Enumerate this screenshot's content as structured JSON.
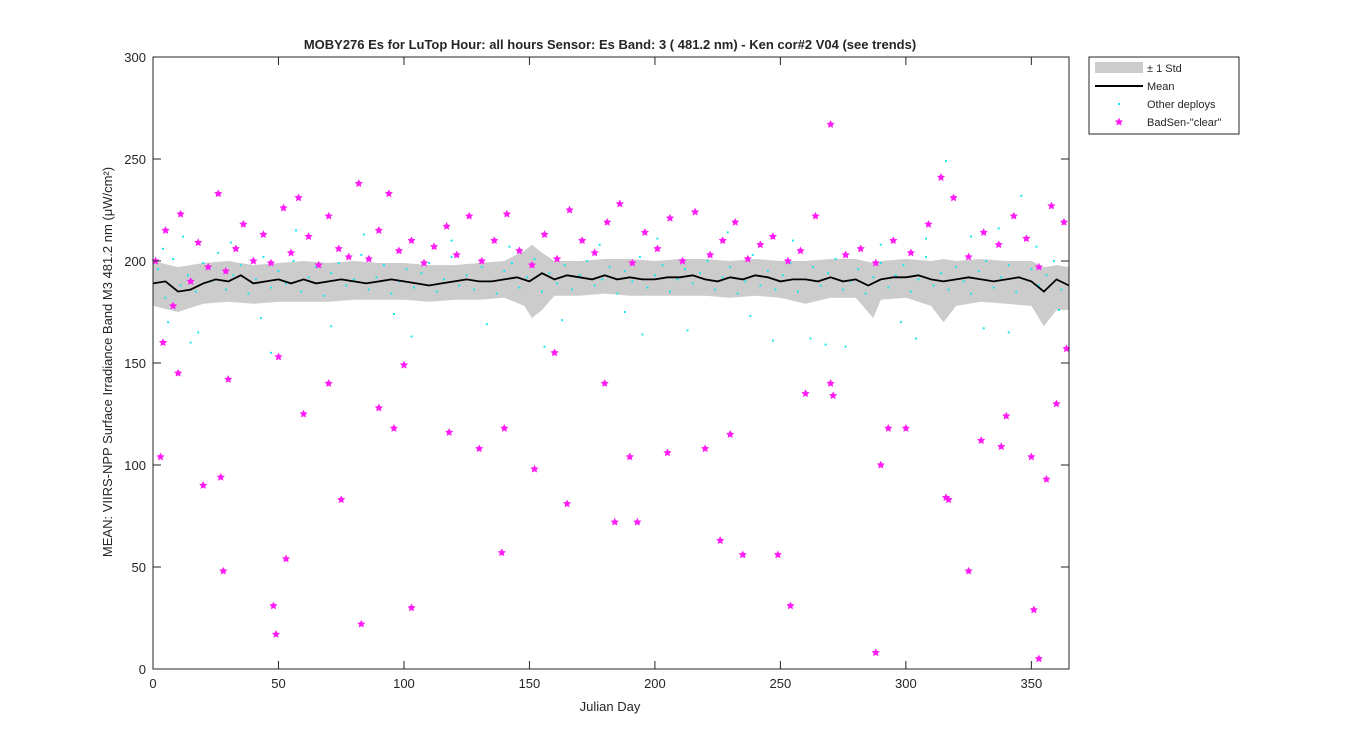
{
  "chart_data": {
    "type": "scatter",
    "title": "MOBY276   Es for LuTop  Hour: all hours  Sensor: Es Band: 3 ( 481.2 nm)   - Ken cor#2 V04 (see trends)",
    "xlabel": "Julian Day",
    "ylabel": "MEAN: VIIRS-NPP Surface Irradiance Band M3 481.2 nm (μW/cm²)",
    "xlim": [
      0,
      365
    ],
    "ylim": [
      0,
      300
    ],
    "x_ticks": [
      0,
      50,
      100,
      150,
      200,
      250,
      300,
      350
    ],
    "y_ticks": [
      0,
      50,
      100,
      150,
      200,
      250,
      300
    ],
    "grid": false,
    "legend_position": "outside-top-right",
    "legend": [
      {
        "key": "std",
        "label": "± 1 Std",
        "color": "#cccccc"
      },
      {
        "key": "mean",
        "label": "Mean",
        "color": "#000000"
      },
      {
        "key": "other",
        "label": "Other deploys",
        "color": "#1ee6f0"
      },
      {
        "key": "bad",
        "label": "BadSen-\"clear\"",
        "color": "#ff1cf5"
      }
    ],
    "series": [
      {
        "name": "Mean",
        "type": "line",
        "color": "#000000",
        "x": [
          0,
          5,
          10,
          15,
          20,
          25,
          30,
          35,
          40,
          45,
          50,
          55,
          60,
          65,
          70,
          75,
          80,
          85,
          90,
          95,
          100,
          105,
          110,
          115,
          120,
          125,
          130,
          135,
          140,
          145,
          150,
          155,
          160,
          165,
          170,
          175,
          180,
          185,
          190,
          195,
          200,
          205,
          210,
          215,
          220,
          225,
          230,
          235,
          240,
          245,
          250,
          255,
          260,
          265,
          270,
          275,
          280,
          285,
          290,
          295,
          300,
          305,
          310,
          315,
          320,
          325,
          330,
          335,
          340,
          345,
          350,
          355,
          360,
          365
        ],
        "y": [
          189,
          190,
          185,
          186,
          189,
          191,
          190,
          193,
          189,
          190,
          191,
          189,
          191,
          189,
          190,
          191,
          190,
          189,
          190,
          191,
          190,
          189,
          188,
          189,
          190,
          191,
          190,
          190,
          191,
          192,
          190,
          194,
          191,
          193,
          192,
          191,
          193,
          191,
          192,
          191,
          191,
          192,
          192,
          193,
          191,
          190,
          192,
          191,
          193,
          192,
          190,
          191,
          191,
          190,
          192,
          190,
          191,
          188,
          191,
          192,
          192,
          193,
          191,
          190,
          191,
          192,
          191,
          190,
          191,
          192,
          190,
          185,
          191,
          188
        ]
      },
      {
        "name": "± 1 Std",
        "type": "band",
        "color": "#cccccc",
        "x": [
          0,
          10,
          20,
          30,
          40,
          50,
          60,
          70,
          80,
          90,
          100,
          110,
          120,
          130,
          140,
          148,
          151,
          155,
          160,
          170,
          180,
          190,
          200,
          210,
          220,
          230,
          240,
          250,
          260,
          270,
          280,
          287,
          290,
          300,
          310,
          315,
          320,
          330,
          340,
          350,
          355,
          360,
          365
        ],
        "upper": [
          200,
          197,
          199,
          200,
          198,
          199,
          200,
          199,
          200,
          199,
          199,
          198,
          198,
          199,
          200,
          205,
          208,
          204,
          200,
          200,
          201,
          201,
          200,
          201,
          201,
          200,
          201,
          200,
          200,
          201,
          201,
          199,
          200,
          201,
          200,
          201,
          200,
          201,
          200,
          200,
          197,
          198,
          197
        ],
        "lower": [
          178,
          175,
          179,
          180,
          179,
          180,
          180,
          180,
          181,
          181,
          181,
          180,
          181,
          181,
          182,
          178,
          172,
          176,
          183,
          183,
          184,
          183,
          183,
          183,
          183,
          182,
          183,
          182,
          179,
          182,
          182,
          172,
          181,
          182,
          178,
          170,
          178,
          180,
          179,
          178,
          168,
          176,
          176
        ]
      },
      {
        "name": "Other deploys",
        "type": "scatter",
        "color": "#1ee6f0",
        "x": [
          2,
          5,
          8,
          11,
          14,
          17,
          20,
          23,
          26,
          29,
          32,
          35,
          38,
          41,
          44,
          47,
          50,
          53,
          56,
          59,
          62,
          65,
          68,
          71,
          74,
          77,
          80,
          83,
          86,
          89,
          92,
          95,
          98,
          101,
          104,
          107,
          110,
          113,
          116,
          119,
          122,
          125,
          128,
          131,
          134,
          137,
          140,
          143,
          146,
          149,
          152,
          155,
          158,
          161,
          164,
          167,
          170,
          173,
          176,
          179,
          182,
          185,
          188,
          191,
          194,
          197,
          200,
          203,
          206,
          209,
          212,
          215,
          218,
          221,
          224,
          227,
          230,
          233,
          236,
          239,
          242,
          245,
          248,
          251,
          254,
          257,
          260,
          263,
          266,
          269,
          272,
          275,
          278,
          281,
          284,
          287,
          290,
          293,
          296,
          299,
          302,
          305,
          308,
          311,
          314,
          317,
          320,
          323,
          326,
          329,
          332,
          335,
          338,
          341,
          344,
          347,
          350,
          353,
          356,
          359,
          362,
          6,
          18,
          43,
          71,
          96,
          133,
          163,
          188,
          213,
          238,
          262,
          276,
          298,
          316,
          331,
          346,
          361,
          12,
          57,
          119,
          178,
          229,
          308,
          337,
          4,
          31,
          84,
          142,
          201,
          255,
          290,
          326,
          352,
          15,
          47,
          103,
          156,
          195,
          247,
          268,
          304,
          341
        ],
        "y": [
          196,
          182,
          201,
          188,
          193,
          185,
          199,
          190,
          204,
          186,
          193,
          198,
          184,
          191,
          202,
          187,
          195,
          189,
          200,
          185,
          192,
          197,
          183,
          194,
          199,
          188,
          191,
          203,
          186,
          192,
          198,
          184,
          190,
          196,
          187,
          194,
          199,
          185,
          191,
          202,
          188,
          193,
          186,
          197,
          190,
          184,
          195,
          199,
          187,
          192,
          201,
          185,
          194,
          189,
          198,
          186,
          193,
          200,
          188,
          191,
          197,
          184,
          195,
          190,
          202,
          187,
          193,
          198,
          185,
          191,
          196,
          189,
          194,
          200,
          186,
          192,
          197,
          184,
          190,
          203,
          188,
          195,
          186,
          193,
          199,
          185,
          191,
          197,
          188,
          194,
          201,
          186,
          190,
          196,
          184,
          192,
          199,
          187,
          193,
          198,
          185,
          191,
          202,
          188,
          194,
          186,
          197,
          190,
          184,
          195,
          200,
          187,
          192,
          198,
          185,
          191,
          196,
          188,
          193,
          200,
          186,
          170,
          165,
          172,
          168,
          174,
          169,
          171,
          175,
          166,
          173,
          162,
          158,
          170,
          249,
          167,
          232,
          176,
          212,
          215,
          210,
          208,
          214,
          211,
          216,
          206,
          209,
          213,
          207,
          211,
          210,
          208,
          212,
          207,
          160,
          155,
          163,
          158,
          164,
          161,
          159,
          162,
          165
        ]
      },
      {
        "name": "BadSen-\"clear\"",
        "type": "scatter",
        "color": "#ff1cf5",
        "x": [
          1,
          3,
          5,
          8,
          11,
          15,
          18,
          22,
          26,
          29,
          33,
          36,
          40,
          44,
          47,
          52,
          55,
          58,
          62,
          66,
          70,
          74,
          78,
          82,
          86,
          90,
          94,
          98,
          103,
          108,
          112,
          117,
          121,
          126,
          131,
          136,
          141,
          146,
          151,
          156,
          161,
          166,
          171,
          176,
          181,
          186,
          191,
          196,
          201,
          206,
          211,
          216,
          222,
          227,
          232,
          237,
          242,
          247,
          253,
          258,
          264,
          270,
          276,
          282,
          288,
          295,
          302,
          309,
          314,
          319,
          325,
          331,
          337,
          343,
          348,
          353,
          358,
          363,
          10,
          30,
          50,
          70,
          90,
          130,
          190,
          230,
          290,
          330,
          350,
          20,
          60,
          100,
          140,
          180,
          220,
          260,
          300,
          340,
          360,
          4,
          27,
          53,
          75,
          96,
          118,
          139,
          160,
          184,
          205,
          226,
          249,
          271,
          293,
          316,
          338,
          356,
          28,
          48,
          49,
          83,
          103,
          152,
          165,
          193,
          235,
          254,
          270,
          288,
          317,
          325,
          351,
          353,
          364
        ],
        "y": [
          200,
          104,
          215,
          178,
          223,
          190,
          209,
          197,
          233,
          195,
          206,
          218,
          200,
          213,
          199,
          226,
          204,
          231,
          212,
          198,
          222,
          206,
          202,
          238,
          201,
          215,
          233,
          205,
          210,
          199,
          207,
          217,
          203,
          222,
          200,
          210,
          223,
          205,
          198,
          213,
          201,
          225,
          210,
          204,
          219,
          228,
          199,
          214,
          206,
          221,
          200,
          224,
          203,
          210,
          219,
          201,
          208,
          212,
          200,
          205,
          222,
          267,
          203,
          206,
          199,
          210,
          204,
          218,
          241,
          231,
          202,
          214,
          208,
          222,
          211,
          197,
          227,
          219,
          145,
          142,
          153,
          140,
          128,
          108,
          104,
          115,
          100,
          112,
          104,
          90,
          125,
          149,
          118,
          140,
          108,
          135,
          118,
          124,
          130,
          160,
          94,
          54,
          83,
          118,
          116,
          57,
          155,
          72,
          106,
          63,
          56,
          134,
          118,
          84,
          109,
          93,
          48,
          31,
          17,
          22,
          30,
          98,
          81,
          72,
          56,
          31,
          140,
          8,
          83,
          48,
          29,
          5,
          157
        ]
      }
    ]
  }
}
